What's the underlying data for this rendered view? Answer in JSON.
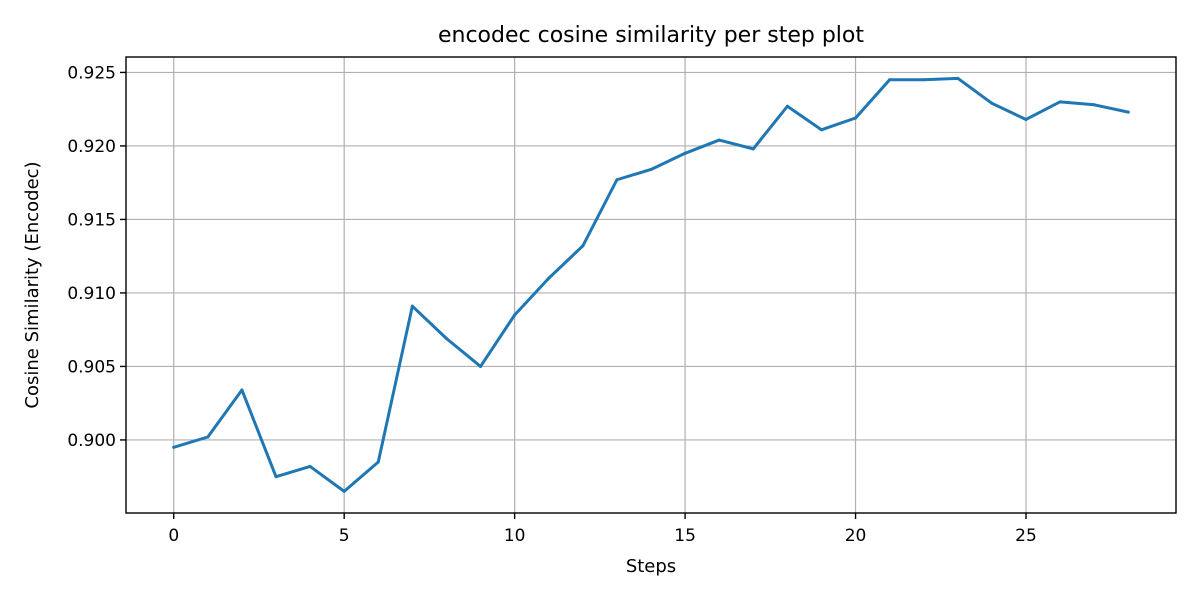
{
  "chart_data": {
    "type": "line",
    "title": "encodec cosine similarity per step plot",
    "xlabel": "Steps",
    "ylabel": "Cosine Similarity (Encodec)",
    "xlim": [
      -1.4,
      29.4
    ],
    "ylim": [
      0.89503,
      0.92605
    ],
    "xticks": [
      0,
      5,
      10,
      15,
      20,
      25
    ],
    "xtick_labels": [
      "0",
      "5",
      "10",
      "15",
      "20",
      "25"
    ],
    "yticks": [
      0.9,
      0.905,
      0.91,
      0.915,
      0.92,
      0.925
    ],
    "ytick_labels": [
      "0.900",
      "0.905",
      "0.910",
      "0.915",
      "0.920",
      "0.925"
    ],
    "grid": true,
    "series": [
      {
        "color": "#1f77b4",
        "x": [
          0,
          1,
          2,
          3,
          4,
          5,
          6,
          7,
          8,
          9,
          10,
          11,
          12,
          13,
          14,
          15,
          16,
          17,
          18,
          19,
          20,
          21,
          22,
          23,
          24,
          25,
          26,
          27,
          28
        ],
        "y": [
          0.8995,
          0.9002,
          0.9034,
          0.8975,
          0.8982,
          0.8965,
          0.8985,
          0.9091,
          0.9069,
          0.905,
          0.9085,
          0.911,
          0.9132,
          0.9177,
          0.9184,
          0.9195,
          0.9204,
          0.9198,
          0.9227,
          0.9211,
          0.9219,
          0.9245,
          0.9245,
          0.9246,
          0.9229,
          0.9218,
          0.923,
          0.9228,
          0.9223
        ]
      }
    ]
  }
}
